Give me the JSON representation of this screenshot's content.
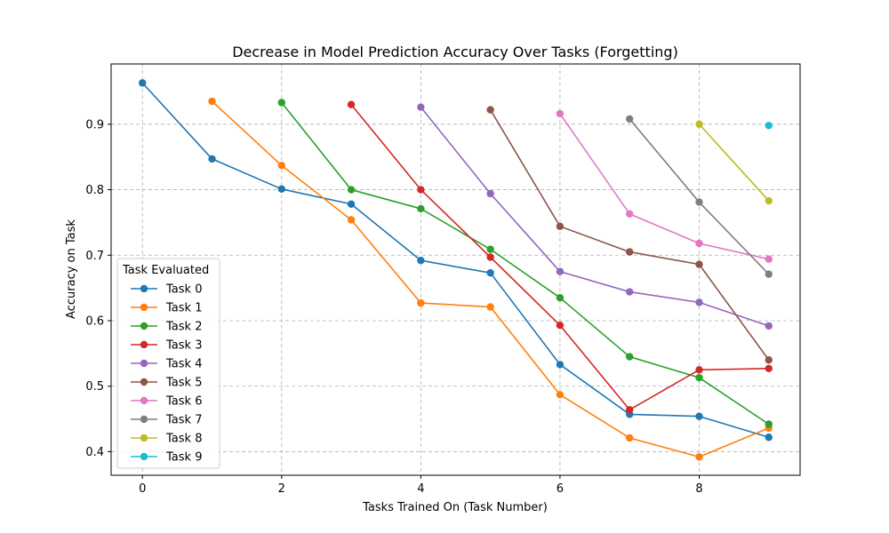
{
  "chart_data": {
    "type": "line",
    "title": "Decrease in Model Prediction Accuracy Over Tasks (Forgetting)",
    "xlabel": "Tasks Trained On (Task Number)",
    "ylabel": "Accuracy on Task",
    "xlim": [
      -0.45,
      9.45
    ],
    "ylim": [
      0.364,
      0.992
    ],
    "xticks": [
      0,
      2,
      4,
      6,
      8
    ],
    "yticks": [
      0.4,
      0.5,
      0.6,
      0.7,
      0.8,
      0.9
    ],
    "ytick_labels": [
      "0.4",
      "0.5",
      "0.6",
      "0.7",
      "0.8",
      "0.9"
    ],
    "grid": true,
    "legend_title": "Task Evaluated",
    "legend_position": "lower-left",
    "series": [
      {
        "name": "Task 0",
        "color": "#1f77b4",
        "x": [
          0,
          1,
          2,
          3,
          4,
          5,
          6,
          7,
          8,
          9
        ],
        "y": [
          0.963,
          0.847,
          0.801,
          0.778,
          0.692,
          0.673,
          0.533,
          0.457,
          0.454,
          0.422
        ]
      },
      {
        "name": "Task 1",
        "color": "#ff7f0e",
        "x": [
          1,
          2,
          3,
          4,
          5,
          6,
          7,
          8,
          9
        ],
        "y": [
          0.935,
          0.837,
          0.754,
          0.627,
          0.621,
          0.487,
          0.421,
          0.392,
          0.436
        ]
      },
      {
        "name": "Task 2",
        "color": "#2ca02c",
        "x": [
          2,
          3,
          4,
          5,
          6,
          7,
          8,
          9
        ],
        "y": [
          0.933,
          0.8,
          0.771,
          0.709,
          0.635,
          0.545,
          0.513,
          0.442
        ]
      },
      {
        "name": "Task 3",
        "color": "#d62728",
        "x": [
          3,
          4,
          5,
          6,
          7,
          8,
          9
        ],
        "y": [
          0.93,
          0.8,
          0.697,
          0.593,
          0.464,
          0.525,
          0.527
        ]
      },
      {
        "name": "Task 4",
        "color": "#9467bd",
        "x": [
          4,
          5,
          6,
          7,
          8,
          9
        ],
        "y": [
          0.926,
          0.794,
          0.675,
          0.644,
          0.628,
          0.592
        ]
      },
      {
        "name": "Task 5",
        "color": "#8c564b",
        "x": [
          5,
          6,
          7,
          8,
          9
        ],
        "y": [
          0.922,
          0.744,
          0.705,
          0.686,
          0.54
        ]
      },
      {
        "name": "Task 6",
        "color": "#e377c2",
        "x": [
          6,
          7,
          8,
          9
        ],
        "y": [
          0.916,
          0.763,
          0.718,
          0.694
        ]
      },
      {
        "name": "Task 7",
        "color": "#7f7f7f",
        "x": [
          7,
          8,
          9
        ],
        "y": [
          0.908,
          0.781,
          0.671
        ]
      },
      {
        "name": "Task 8",
        "color": "#bcbd22",
        "x": [
          8,
          9
        ],
        "y": [
          0.9,
          0.783
        ]
      },
      {
        "name": "Task 9",
        "color": "#17becf",
        "x": [
          9
        ],
        "y": [
          0.898
        ]
      }
    ]
  }
}
